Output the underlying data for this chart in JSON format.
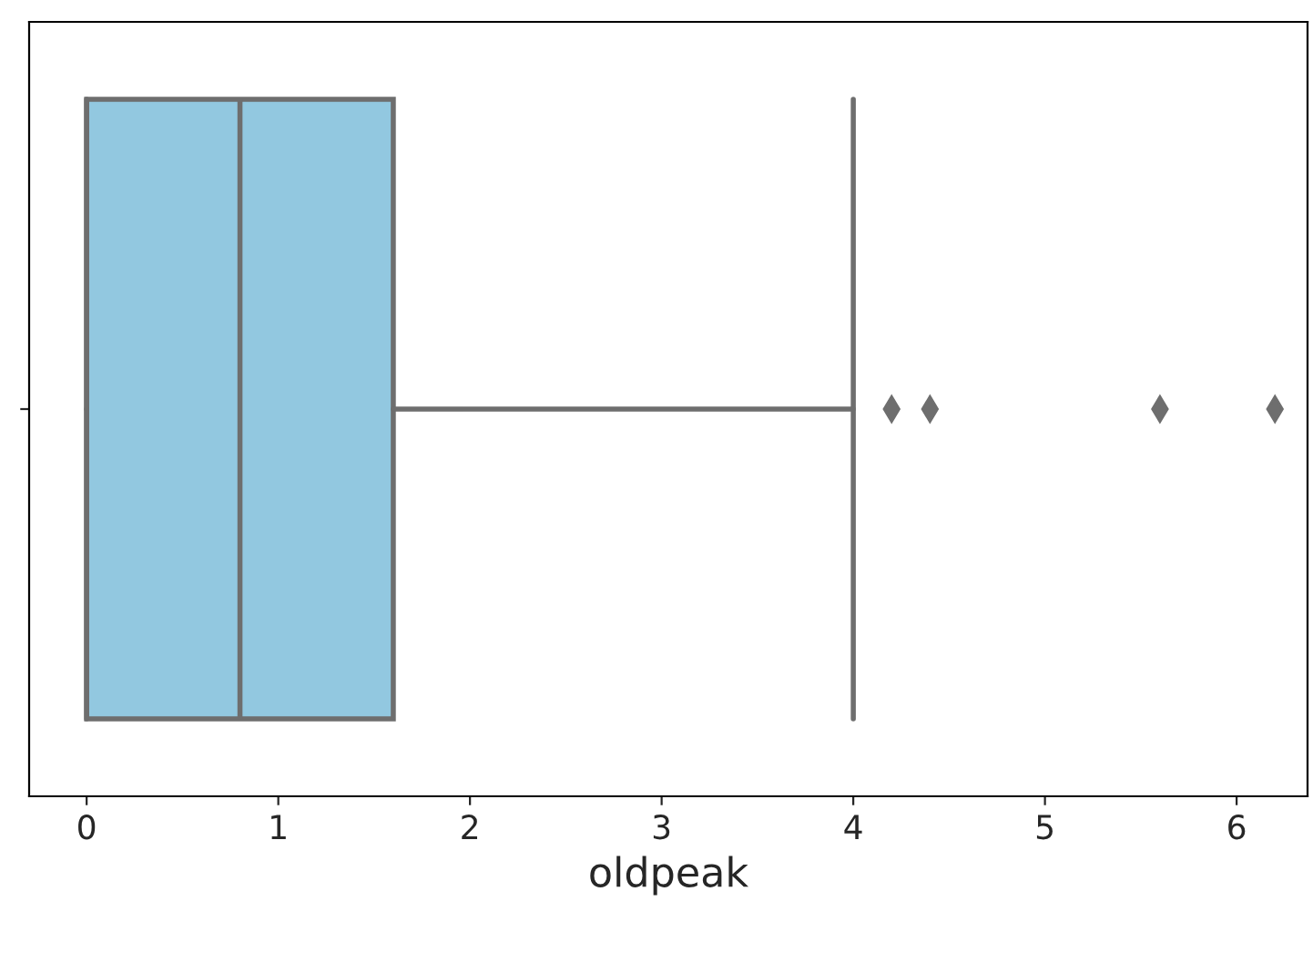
{
  "chart_data": {
    "type": "box",
    "orientation": "horizontal",
    "xlabel": "oldpeak",
    "categories": [
      null
    ],
    "boxes": [
      {
        "low": 0,
        "q1": 0,
        "median": 0.8,
        "q3": 1.6,
        "high": 4.0,
        "outliers": [
          4.2,
          4.4,
          5.6,
          6.2
        ]
      }
    ],
    "color": "#92c8e0",
    "marker": "diamond",
    "xlim": [
      -0.3,
      6.37
    ],
    "xticks": [
      0,
      1,
      2,
      3,
      4,
      5,
      6
    ]
  }
}
